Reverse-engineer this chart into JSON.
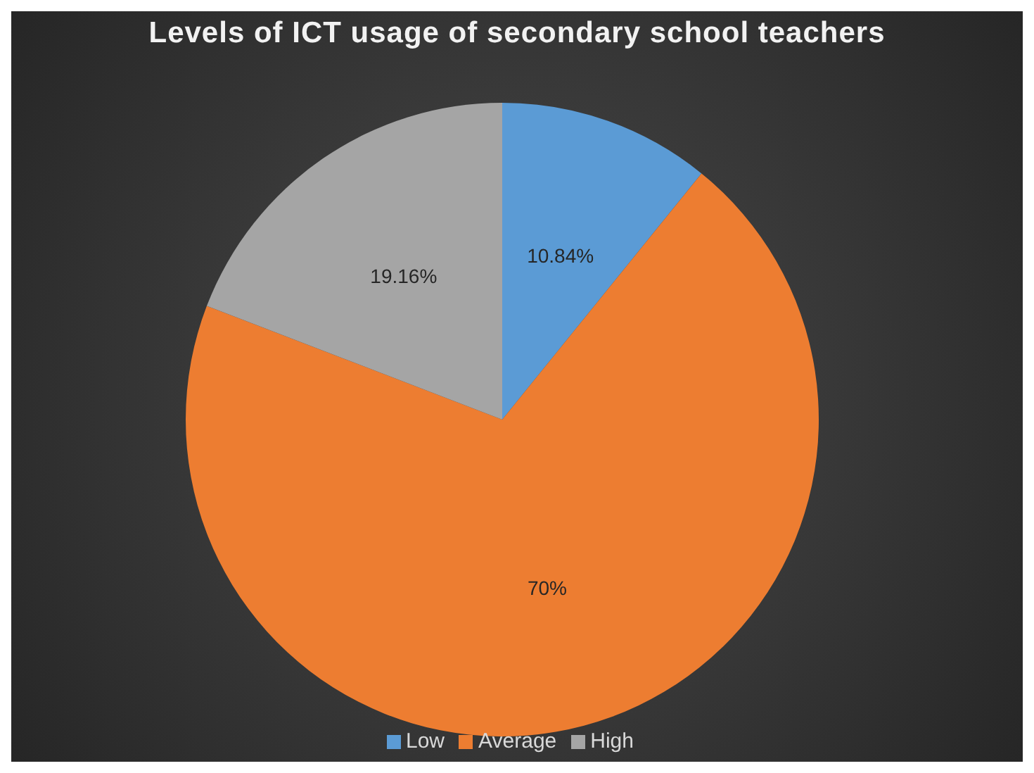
{
  "chart_data": {
    "type": "pie",
    "title": "Levels of ICT usage of secondary school teachers",
    "categories": [
      "Low",
      "Average",
      "High"
    ],
    "values": [
      10.84,
      70,
      19.16
    ],
    "colors": [
      "#5b9bd5",
      "#ed7d31",
      "#a5a5a5"
    ],
    "value_labels": [
      "10.84%",
      "70%",
      "19.16%"
    ],
    "legend": "bottom"
  }
}
